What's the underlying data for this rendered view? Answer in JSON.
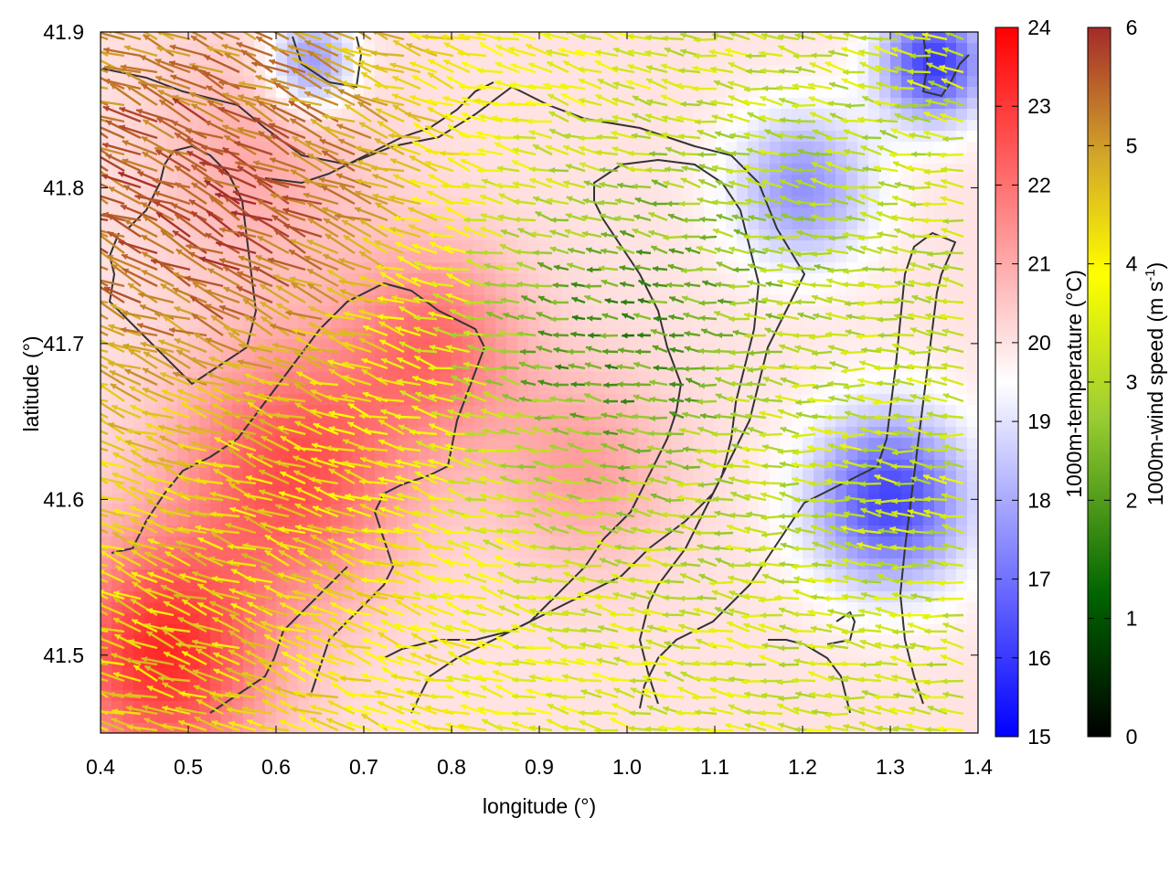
{
  "chart_data": {
    "type": "heatmap",
    "title": "",
    "xlabel": "longitude (°)",
    "ylabel": "latitude (°)",
    "xlim": [
      0.4,
      1.4
    ],
    "ylim": [
      41.45,
      41.9
    ],
    "x_ticks": [
      "0.4",
      "0.5",
      "0.6",
      "0.7",
      "0.8",
      "0.9",
      "1.0",
      "1.1",
      "1.2",
      "1.3",
      "1.4"
    ],
    "x_tick_values": [
      0.4,
      0.5,
      0.6,
      0.7,
      0.8,
      0.9,
      1.0,
      1.1,
      1.2,
      1.3,
      1.4
    ],
    "y_ticks": [
      "41.5",
      "41.6",
      "41.7",
      "41.8",
      "41.9"
    ],
    "y_tick_values": [
      41.5,
      41.6,
      41.7,
      41.8,
      41.9
    ],
    "grid": false,
    "background_field": {
      "name": "1000m-temperature",
      "colorbar_label": "1000m-temperature (°C)",
      "range": [
        15,
        24
      ],
      "ticks": [
        "15",
        "16",
        "17",
        "18",
        "19",
        "20",
        "21",
        "22",
        "23",
        "24"
      ],
      "colors": [
        "#0000ff",
        "#ffffff",
        "#ff0000"
      ],
      "hotspots": [
        {
          "lon": 0.47,
          "lat": 41.5,
          "value": 23.2,
          "spread": 0.12
        },
        {
          "lon": 0.62,
          "lat": 41.62,
          "value": 22.6,
          "spread": 0.13
        },
        {
          "lon": 0.78,
          "lat": 41.7,
          "value": 22.0,
          "spread": 0.1
        },
        {
          "lon": 0.58,
          "lat": 41.82,
          "value": 21.0,
          "spread": 0.12
        },
        {
          "lon": 0.95,
          "lat": 41.62,
          "value": 21.2,
          "spread": 0.1
        },
        {
          "lon": 1.3,
          "lat": 41.6,
          "value": 16.2,
          "spread": 0.09
        },
        {
          "lon": 1.35,
          "lat": 41.88,
          "value": 16.0,
          "spread": 0.06
        },
        {
          "lon": 1.2,
          "lat": 41.8,
          "value": 17.6,
          "spread": 0.08
        },
        {
          "lon": 0.64,
          "lat": 41.88,
          "value": 17.4,
          "spread": 0.05
        }
      ],
      "base_value": 20.0
    },
    "vector_field": {
      "name": "1000m-wind speed",
      "colorbar_label": "1000m-wind speed (m s⁻¹)",
      "colorbar_label_main": "1000m-wind speed (m s",
      "colorbar_label_sup": "-1",
      "colorbar_label_end": ")",
      "range": [
        0,
        6
      ],
      "ticks": [
        "0",
        "1",
        "2",
        "3",
        "4",
        "5",
        "6"
      ],
      "colors": [
        "#000000",
        "#006400",
        "#9acd32",
        "#ffff00",
        "#d2a52a",
        "#a52a2a"
      ],
      "regimes": [
        {
          "region": "north-west",
          "lon": 0.55,
          "lat": 41.78,
          "direction_deg": 155,
          "speed": 5.8
        },
        {
          "region": "south-west",
          "lon": 0.55,
          "lat": 41.55,
          "direction_deg": 160,
          "speed": 4.2
        },
        {
          "region": "central",
          "lon": 1.0,
          "lat": 41.7,
          "direction_deg": 170,
          "speed": 1.6
        },
        {
          "region": "east",
          "lon": 1.25,
          "lat": 41.65,
          "direction_deg": 175,
          "speed": 3.0
        }
      ]
    },
    "contour_color": "#333333"
  }
}
